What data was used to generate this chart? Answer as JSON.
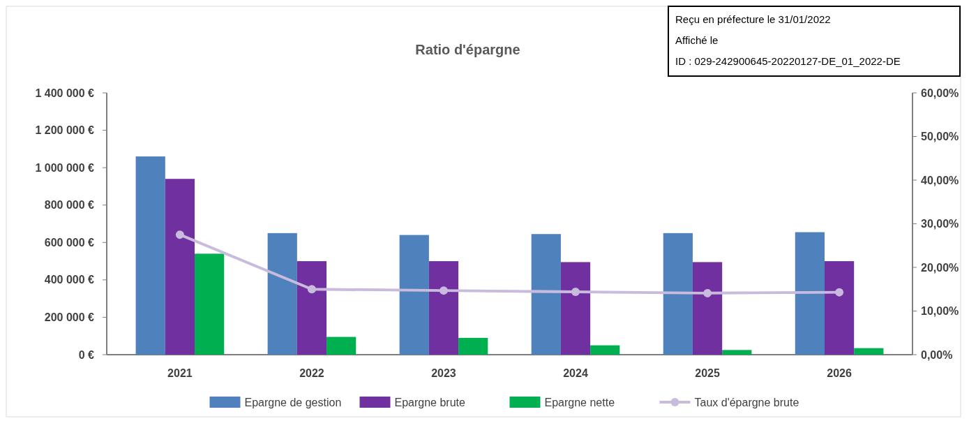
{
  "chart_data": {
    "type": "bar",
    "title": "Ratio d'épargne",
    "categories": [
      "2021",
      "2022",
      "2023",
      "2024",
      "2025",
      "2026"
    ],
    "series": [
      {
        "name": "Epargne de gestion",
        "color": "#4f81bd",
        "values": [
          1060000,
          650000,
          640000,
          645000,
          650000,
          655000
        ]
      },
      {
        "name": "Epargne brute",
        "color": "#7030a0",
        "values": [
          940000,
          500000,
          500000,
          495000,
          495000,
          500000
        ]
      },
      {
        "name": "Epargne nette",
        "color": "#00b050",
        "values": [
          540000,
          95000,
          90000,
          50000,
          25000,
          35000
        ]
      },
      {
        "name": "Taux d'épargne brute",
        "color": "#c9bbdd",
        "type": "line",
        "axis": "y2",
        "marker": "circle",
        "values": [
          27.5,
          15.0,
          14.7,
          14.4,
          14.1,
          14.3
        ]
      }
    ],
    "ylim": [
      0,
      1400000
    ],
    "yticks": [
      {
        "value": 0,
        "label": "0 €"
      },
      {
        "value": 200000,
        "label": "200 000 €"
      },
      {
        "value": 400000,
        "label": "400 000 €"
      },
      {
        "value": 600000,
        "label": "600 000 €"
      },
      {
        "value": 800000,
        "label": "800 000 €"
      },
      {
        "value": 1000000,
        "label": "1 000 000 €"
      },
      {
        "value": 1200000,
        "label": "1 200 000 €"
      },
      {
        "value": 1400000,
        "label": "1 400 000 €"
      }
    ],
    "y2lim": [
      0,
      60
    ],
    "y2ticks": [
      {
        "value": 0,
        "label": "0,00%"
      },
      {
        "value": 10,
        "label": "10,00%"
      },
      {
        "value": 20,
        "label": "20,00%"
      },
      {
        "value": 30,
        "label": "30,00%"
      },
      {
        "value": 40,
        "label": "40,00%"
      },
      {
        "value": 50,
        "label": "50,00%"
      },
      {
        "value": 60,
        "label": "60,00%"
      }
    ],
    "legend": "bottom",
    "annotations": [
      "Reçu en préfecture le 31/01/2022",
      "Affiché le",
      "ID : 029-242900645-20220127-DE_01_2022-DE"
    ]
  }
}
